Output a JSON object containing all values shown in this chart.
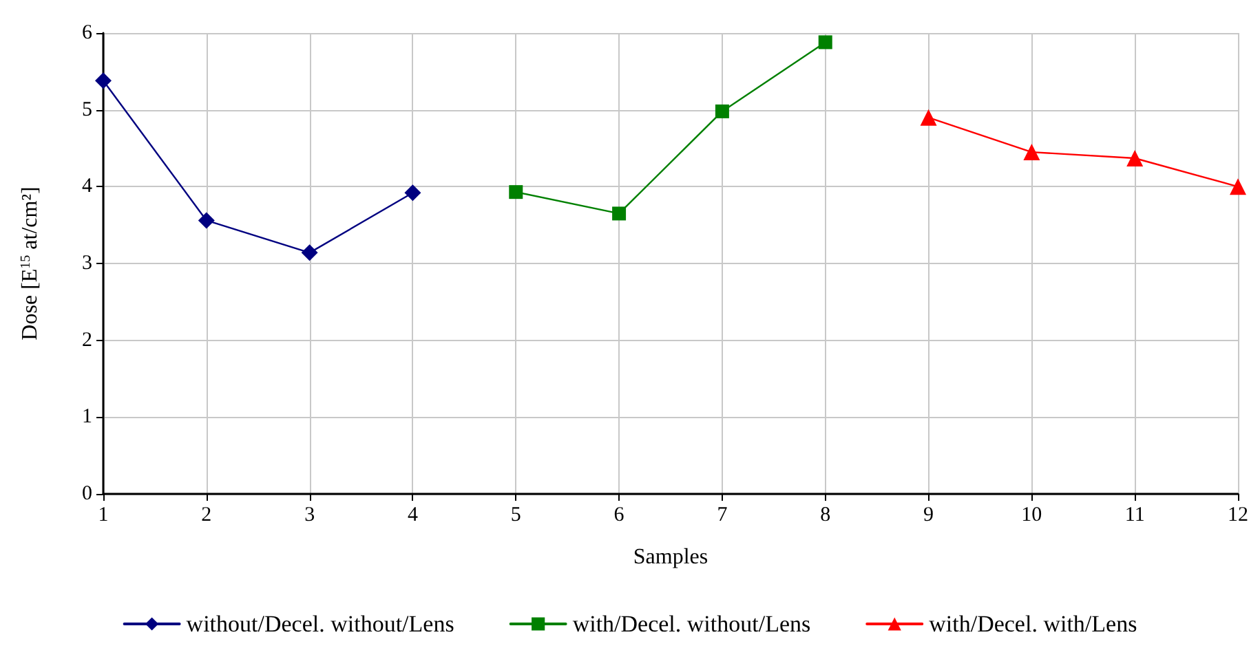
{
  "chart_data": {
    "type": "line",
    "xlabel": "Samples",
    "ylabel": "Dose [E$^{15}$ at/cm²]",
    "x": [
      1,
      2,
      3,
      4,
      5,
      6,
      7,
      8,
      9,
      10,
      11,
      12
    ],
    "xlim": [
      1,
      12
    ],
    "xticks": [
      1,
      2,
      3,
      4,
      5,
      6,
      7,
      8,
      9,
      10,
      11,
      12
    ],
    "series": [
      {
        "name": "without/Decel. without/Lens",
        "color": "#000080",
        "marker": "diamond",
        "values": [
          5.38,
          3.56,
          3.14,
          3.92,
          null,
          null,
          null,
          null,
          null,
          null,
          null,
          null
        ]
      },
      {
        "name": "with/Decel. without/Lens",
        "color": "#008000",
        "marker": "square",
        "values": [
          null,
          null,
          null,
          null,
          3.93,
          3.65,
          4.98,
          5.88,
          null,
          null,
          null,
          null
        ]
      },
      {
        "name": "with/Decel. with/Lens",
        "color": "#ff0000",
        "marker": "triangle",
        "values": [
          null,
          null,
          null,
          null,
          null,
          null,
          null,
          null,
          4.9,
          4.45,
          4.37,
          4.0
        ]
      }
    ],
    "ylim": [
      0,
      6
    ],
    "yticks": [
      0,
      1,
      2,
      3,
      4,
      5,
      6
    ],
    "grid": true,
    "legend": "bottom",
    "line_style": "solid"
  }
}
